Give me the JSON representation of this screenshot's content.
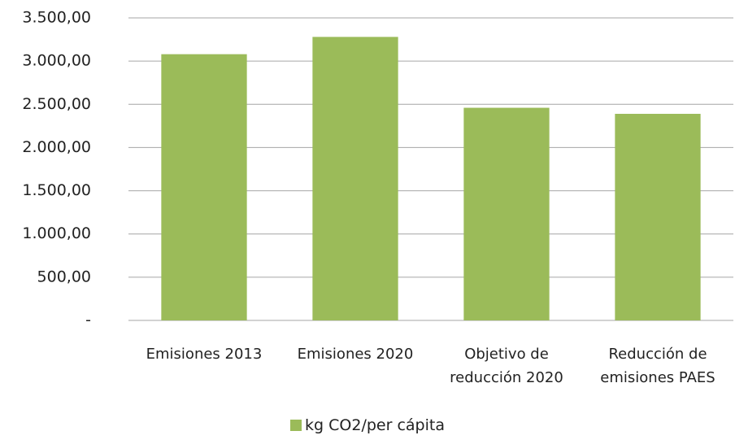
{
  "chart_data": {
    "type": "bar",
    "categories": [
      "Emisiones 2013",
      "Emisiones 2020",
      "Objetivo de reducción 2020",
      "Reducción de emisiones PAES"
    ],
    "series": [
      {
        "name": "kg CO2/per cápita",
        "color": "#9bbb59",
        "values": [
          3080,
          3280,
          2460,
          2390
        ]
      }
    ],
    "ylim": [
      0,
      3500
    ],
    "yticks": [
      {
        "value": 0,
        "label": "-"
      },
      {
        "value": 500,
        "label": "500,00"
      },
      {
        "value": 1000,
        "label": "1.000,00"
      },
      {
        "value": 1500,
        "label": "1.500,00"
      },
      {
        "value": 2000,
        "label": "2.000,00"
      },
      {
        "value": 2500,
        "label": "2.500,00"
      },
      {
        "value": 3000,
        "label": "3.000,00"
      },
      {
        "value": 3500,
        "label": "3.500,00"
      }
    ],
    "grid": true,
    "legend": "bottom"
  }
}
